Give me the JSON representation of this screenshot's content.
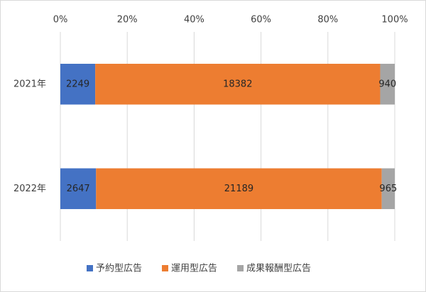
{
  "chart_data": {
    "type": "bar",
    "orientation": "horizontal",
    "stacking": "percent",
    "categories": [
      "2021年",
      "2022年"
    ],
    "series": [
      {
        "name": "予約型広告",
        "color": "#4472c4",
        "values": [
          2249,
          2647
        ]
      },
      {
        "name": "運用型広告",
        "color": "#ed7d31",
        "values": [
          18382,
          21189
        ]
      },
      {
        "name": "成果報酬型広告",
        "color": "#a5a5a5",
        "values": [
          940,
          965
        ]
      }
    ],
    "xlim": [
      0,
      100
    ],
    "xticks": [
      {
        "value": 0,
        "label": "0%"
      },
      {
        "value": 20,
        "label": "20%"
      },
      {
        "value": 40,
        "label": "40%"
      },
      {
        "value": 60,
        "label": "60%"
      },
      {
        "value": 80,
        "label": "80%"
      },
      {
        "value": 100,
        "label": "100%"
      }
    ],
    "grid": true,
    "legend": "bottom"
  }
}
